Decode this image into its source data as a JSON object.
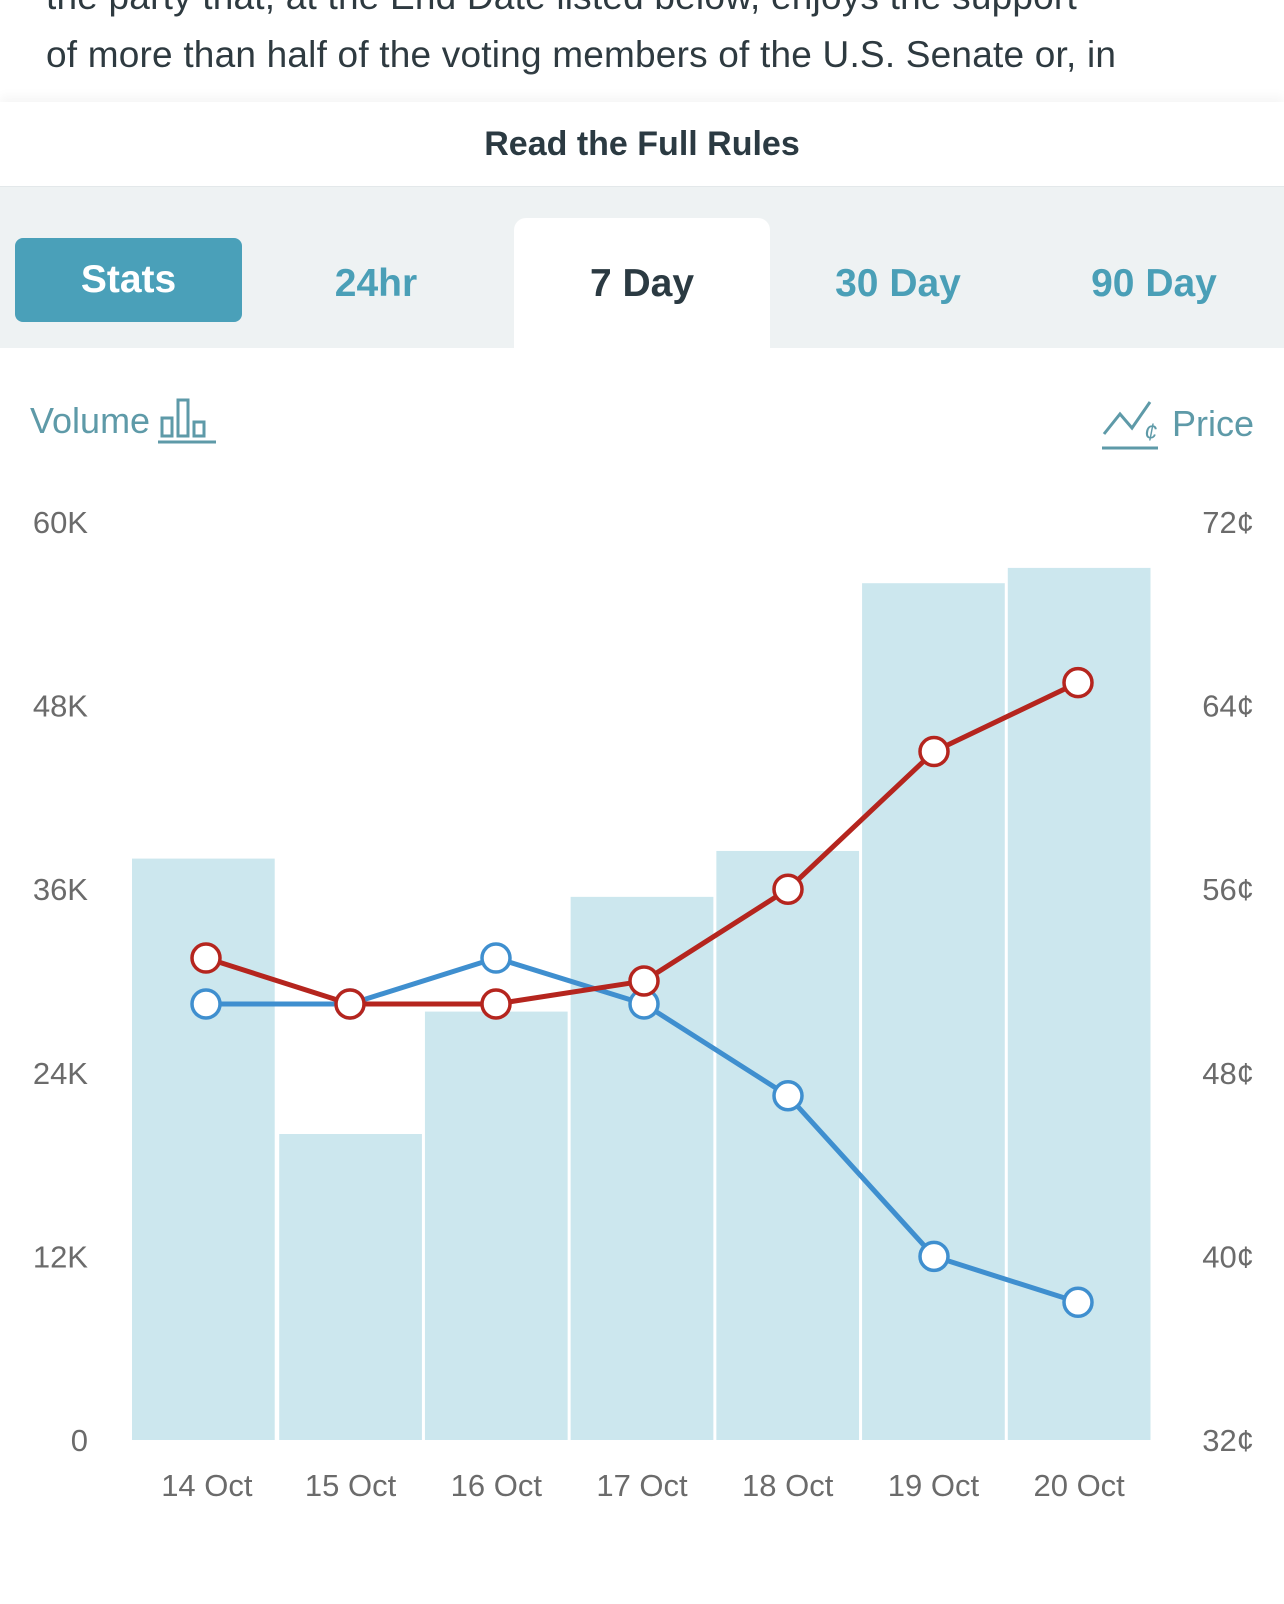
{
  "rules_excerpt": {
    "line1": "the party that, at the End Date listed below, enjoys the support",
    "line2": "of more than half of the voting members of the U.S. Senate or, in"
  },
  "read_rules_label": "Read the Full Rules",
  "tabs": {
    "stats": "Stats",
    "items": [
      "24hr",
      "7 Day",
      "30 Day",
      "90 Day"
    ],
    "active": "7 Day"
  },
  "legend": {
    "volume_label": "Volume",
    "volume_icon": "bar-chart-icon",
    "price_label": "Price",
    "price_icon": "price-line-icon"
  },
  "colors": {
    "accent": "#4aa0b9",
    "volume_bar": "#cce7ee",
    "series_red": "#b5251e",
    "series_blue": "#3f8fcf"
  },
  "chart_data": {
    "type": "bar",
    "categories": [
      "14 Oct",
      "15 Oct",
      "16 Oct",
      "17 Oct",
      "18 Oct",
      "19 Oct",
      "20 Oct"
    ],
    "volume": {
      "values": [
        38000,
        20000,
        28000,
        35500,
        38500,
        56000,
        57000
      ],
      "ylim": [
        0,
        60000
      ],
      "ticks": [
        "0",
        "12K",
        "24K",
        "36K",
        "48K",
        "60K"
      ],
      "tick_values": [
        0,
        12000,
        24000,
        36000,
        48000,
        60000
      ]
    },
    "price": {
      "ylim": [
        32,
        72
      ],
      "ticks": [
        "32¢",
        "40¢",
        "48¢",
        "56¢",
        "64¢",
        "72¢"
      ],
      "tick_values": [
        32,
        40,
        48,
        56,
        64,
        72
      ],
      "series": [
        {
          "color": "red",
          "values": [
            53,
            51,
            51,
            52,
            56,
            62,
            65
          ]
        },
        {
          "color": "blue",
          "values": [
            51,
            51,
            53,
            51,
            47,
            40,
            38
          ]
        }
      ]
    },
    "grid": false
  }
}
